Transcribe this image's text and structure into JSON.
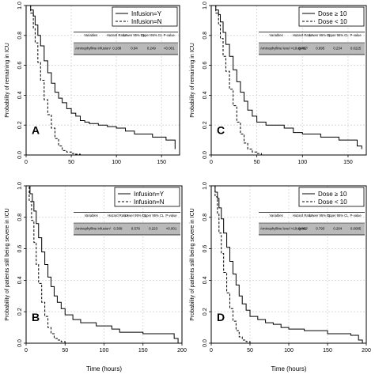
{
  "figure": {
    "xlabel": "Time (hours)"
  },
  "chart_data": [
    {
      "panel_label": "A",
      "type": "line",
      "ylabel": "Probability of remaining in ICU",
      "xlim": [
        0,
        170
      ],
      "ylim": [
        0,
        1.0
      ],
      "xticks": [
        0,
        50,
        100,
        150
      ],
      "yticks": [
        0.0,
        0.2,
        0.4,
        0.6,
        0.8,
        1.0
      ],
      "grid": true,
      "legend": {
        "placement": "top-right",
        "entries": [
          "Infusion=Y",
          "Infusion=N"
        ]
      },
      "stats_table": {
        "headers": [
          "Variables",
          "Hazard Ratio¹",
          "Lower 95% CL",
          "Upper 95% CL",
          "P-value"
        ],
        "row": [
          "Aminophylline infusion¹",
          "0.288",
          "0.84",
          "0.249",
          "<0.001"
        ]
      },
      "series": [
        {
          "name": "Infusion=Y",
          "style": "solid",
          "x": [
            0,
            5,
            8,
            10,
            13,
            16,
            20,
            24,
            28,
            32,
            36,
            40,
            45,
            50,
            55,
            60,
            65,
            70,
            80,
            90,
            100,
            110,
            120,
            140,
            155,
            165
          ],
          "y": [
            1.0,
            0.97,
            0.93,
            0.87,
            0.8,
            0.73,
            0.63,
            0.55,
            0.48,
            0.42,
            0.38,
            0.35,
            0.31,
            0.28,
            0.26,
            0.23,
            0.22,
            0.21,
            0.2,
            0.19,
            0.18,
            0.16,
            0.14,
            0.12,
            0.1,
            0.04
          ]
        },
        {
          "name": "Infusion=N",
          "style": "dashed",
          "x": [
            0,
            5,
            8,
            10,
            13,
            16,
            20,
            24,
            28,
            32,
            36,
            40,
            45,
            50,
            55,
            60
          ],
          "y": [
            1.0,
            0.95,
            0.85,
            0.75,
            0.62,
            0.5,
            0.37,
            0.27,
            0.18,
            0.11,
            0.06,
            0.03,
            0.02,
            0.01,
            0.005,
            0.0
          ]
        }
      ]
    },
    {
      "panel_label": "C",
      "type": "line",
      "ylabel": "Probability of remaining in ICU",
      "xlim": [
        0,
        170
      ],
      "ylim": [
        0,
        1.0
      ],
      "xticks": [
        0,
        50,
        100,
        150
      ],
      "yticks": [
        0.0,
        0.2,
        0.4,
        0.6,
        0.8,
        1.0
      ],
      "grid": true,
      "legend": {
        "placement": "top-right",
        "entries": [
          "Dose ≥ 10",
          "Dose < 10"
        ]
      },
      "stats_table": {
        "headers": [
          "Variables",
          "Hazard Ratio¹",
          "Lower 95% CL",
          "Upper 95% CL",
          "P-value"
        ],
        "row": [
          "Aminophylline level >10ug/mL¹",
          "0.457",
          "0.895",
          "0.234",
          "0.0225"
        ]
      },
      "series": [
        {
          "name": "Dose ≥ 10",
          "style": "solid",
          "x": [
            0,
            5,
            8,
            10,
            13,
            16,
            20,
            24,
            28,
            32,
            36,
            40,
            45,
            50,
            60,
            70,
            80,
            90,
            100,
            120,
            140,
            160,
            165
          ],
          "y": [
            1.0,
            0.97,
            0.94,
            0.89,
            0.82,
            0.74,
            0.66,
            0.57,
            0.49,
            0.42,
            0.36,
            0.3,
            0.26,
            0.22,
            0.2,
            0.2,
            0.18,
            0.15,
            0.14,
            0.12,
            0.1,
            0.06,
            0.04
          ]
        },
        {
          "name": "Dose < 10",
          "style": "dashed",
          "x": [
            0,
            5,
            8,
            10,
            13,
            16,
            20,
            24,
            28,
            32,
            36,
            40,
            45,
            50,
            55
          ],
          "y": [
            1.0,
            0.95,
            0.87,
            0.78,
            0.66,
            0.56,
            0.44,
            0.33,
            0.22,
            0.14,
            0.08,
            0.04,
            0.02,
            0.01,
            0.0
          ]
        }
      ]
    },
    {
      "panel_label": "B",
      "type": "line",
      "ylabel": "Probability of patients still being severe in ICU",
      "xlim": [
        0,
        200
      ],
      "ylim": [
        0,
        1.0
      ],
      "xticks": [
        0,
        50,
        100,
        150,
        200
      ],
      "yticks": [
        0.0,
        0.2,
        0.4,
        0.6,
        0.8,
        1.0
      ],
      "grid": true,
      "legend": {
        "placement": "top-right",
        "entries": [
          "Infusion=Y",
          "Infusion=N"
        ]
      },
      "stats_table": {
        "headers": [
          "Variables",
          "Hazard Ratio¹",
          "Lower 95% CL",
          "Upper 95% CL",
          "P-value"
        ],
        "row": [
          "Aminophylline infusion¹",
          "0.308",
          "0.578",
          "0.223",
          "<0.001"
        ]
      },
      "series": [
        {
          "name": "Infusion=Y",
          "style": "solid",
          "x": [
            0,
            5,
            8,
            10,
            13,
            16,
            20,
            24,
            28,
            32,
            36,
            40,
            45,
            50,
            60,
            70,
            80,
            90,
            100,
            110,
            120,
            150,
            180,
            190,
            195
          ],
          "y": [
            1.0,
            0.95,
            0.9,
            0.84,
            0.76,
            0.67,
            0.58,
            0.5,
            0.42,
            0.36,
            0.3,
            0.26,
            0.22,
            0.18,
            0.15,
            0.13,
            0.13,
            0.11,
            0.11,
            0.09,
            0.07,
            0.06,
            0.06,
            0.03,
            0.0
          ]
        },
        {
          "name": "Infusion=N",
          "style": "dashed",
          "x": [
            0,
            4,
            7,
            10,
            13,
            16,
            20,
            24,
            28,
            32,
            36,
            40,
            45,
            50
          ],
          "y": [
            1.0,
            0.9,
            0.78,
            0.64,
            0.5,
            0.38,
            0.26,
            0.17,
            0.1,
            0.06,
            0.03,
            0.02,
            0.01,
            0.0
          ]
        }
      ]
    },
    {
      "panel_label": "D",
      "type": "line",
      "ylabel": "Probability of patients still being severe in ICU",
      "xlim": [
        0,
        200
      ],
      "ylim": [
        0,
        1.0
      ],
      "xticks": [
        0,
        50,
        100,
        150,
        200
      ],
      "yticks": [
        0.0,
        0.2,
        0.4,
        0.6,
        0.8,
        1.0
      ],
      "grid": true,
      "legend": {
        "placement": "top-right",
        "entries": [
          "Dose ≥ 10",
          "Dose < 10"
        ]
      },
      "stats_table": {
        "headers": [
          "Variables",
          "Hazard Ratio¹",
          "Lower 95% CL",
          "Upper 95% CL",
          "P-value"
        ],
        "row": [
          "Aminophylline level >10ug/mL¹",
          "0.402",
          "0.793",
          "0.204",
          "0.0085"
        ]
      },
      "series": [
        {
          "name": "Dose ≥ 10",
          "style": "solid",
          "x": [
            0,
            5,
            8,
            10,
            13,
            16,
            20,
            24,
            28,
            32,
            36,
            40,
            45,
            50,
            60,
            70,
            80,
            90,
            100,
            120,
            150,
            180,
            190,
            195
          ],
          "y": [
            1.0,
            0.96,
            0.92,
            0.86,
            0.79,
            0.7,
            0.61,
            0.52,
            0.44,
            0.37,
            0.3,
            0.25,
            0.21,
            0.17,
            0.15,
            0.13,
            0.12,
            0.1,
            0.09,
            0.08,
            0.06,
            0.05,
            0.02,
            0.0
          ]
        },
        {
          "name": "Dose < 10",
          "style": "dashed",
          "x": [
            0,
            5,
            8,
            10,
            13,
            16,
            20,
            24,
            28,
            32,
            36,
            40,
            45,
            50
          ],
          "y": [
            1.0,
            0.93,
            0.82,
            0.7,
            0.57,
            0.45,
            0.32,
            0.22,
            0.14,
            0.08,
            0.04,
            0.02,
            0.01,
            0.0
          ]
        }
      ]
    }
  ]
}
